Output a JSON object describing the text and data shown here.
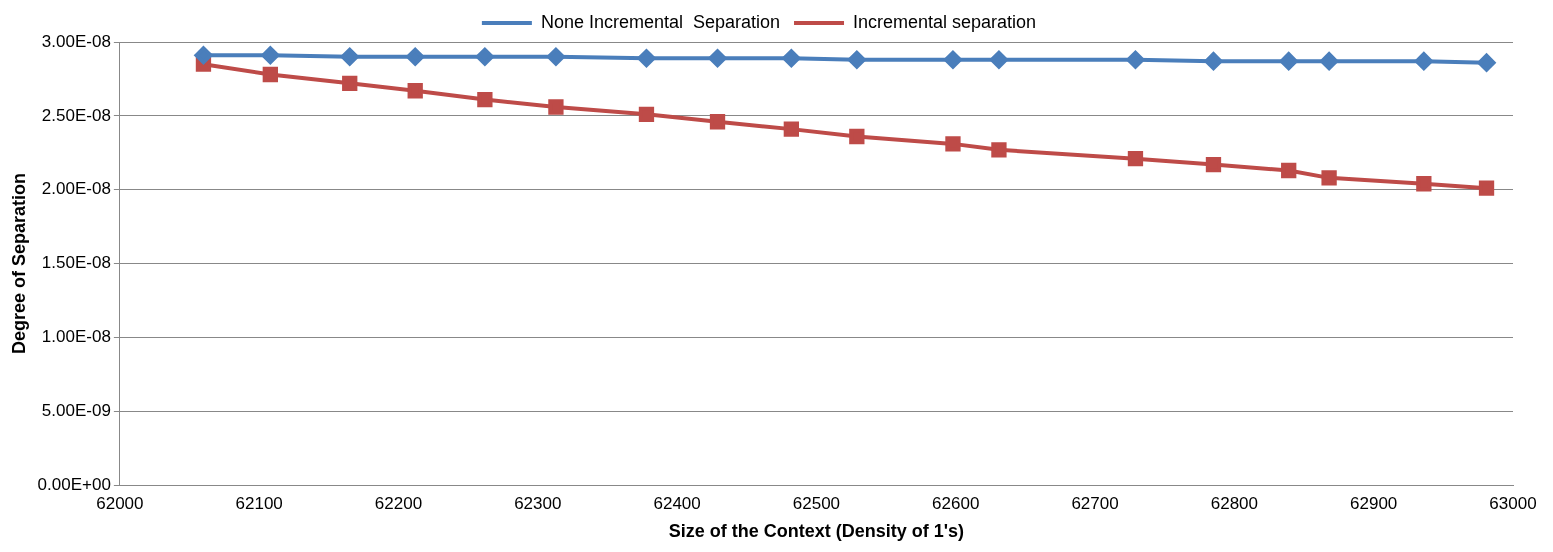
{
  "chart_data": {
    "type": "line",
    "xlabel": "Size of the Context (Density of 1's)",
    "ylabel": "Degree of Separation",
    "x": [
      62060,
      62108,
      62165,
      62212,
      62262,
      62313,
      62378,
      62429,
      62482,
      62529,
      62598,
      62631,
      62729,
      62785,
      62839,
      62868,
      62936,
      62981
    ],
    "series": [
      {
        "name": "None Incremental  Separation",
        "color": "#4a7ebb",
        "marker": "diamond",
        "values": [
          2.91e-08,
          2.91e-08,
          2.9e-08,
          2.9e-08,
          2.9e-08,
          2.9e-08,
          2.89e-08,
          2.89e-08,
          2.89e-08,
          2.88e-08,
          2.88e-08,
          2.88e-08,
          2.88e-08,
          2.87e-08,
          2.87e-08,
          2.87e-08,
          2.87e-08,
          2.86e-08
        ]
      },
      {
        "name": "Incremental separation",
        "color": "#be4b48",
        "marker": "square",
        "values": [
          2.85e-08,
          2.78e-08,
          2.72e-08,
          2.67e-08,
          2.61e-08,
          2.56e-08,
          2.51e-08,
          2.46e-08,
          2.41e-08,
          2.36e-08,
          2.31e-08,
          2.27e-08,
          2.21e-08,
          2.17e-08,
          2.13e-08,
          2.08e-08,
          2.04e-08,
          2.01e-08
        ]
      }
    ],
    "xlim": [
      62000,
      63000
    ],
    "xticks": [
      62000,
      62100,
      62200,
      62300,
      62400,
      62500,
      62600,
      62700,
      62800,
      62900,
      63000
    ],
    "ylim": [
      0,
      3e-08
    ],
    "yticks": [
      {
        "value": 0,
        "label": "0.00E+00"
      },
      {
        "value": 5e-09,
        "label": "5.00E-09"
      },
      {
        "value": 1e-08,
        "label": "1.00E-08"
      },
      {
        "value": 1.5e-08,
        "label": "1.50E-08"
      },
      {
        "value": 2e-08,
        "label": "2.00E-08"
      },
      {
        "value": 2.5e-08,
        "label": "2.50E-08"
      },
      {
        "value": 3e-08,
        "label": "3.00E-08"
      }
    ],
    "grid": "y",
    "legend": "top",
    "line_style": "solid"
  }
}
